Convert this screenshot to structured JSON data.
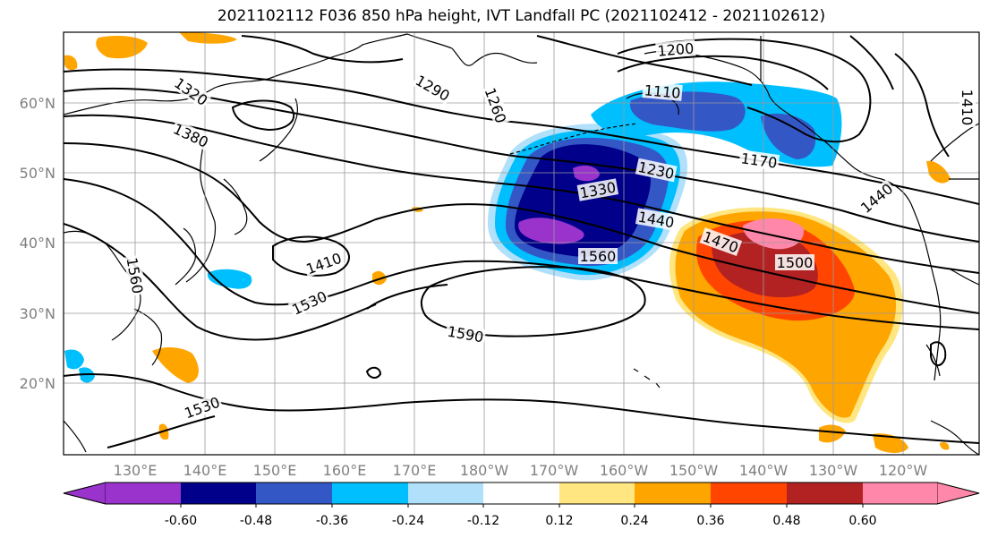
{
  "title": "2021102112 F036 850 hPa height, IVT Landfall PC (2021102412 - 2021102612)",
  "colors": {
    "coast": "#000000",
    "contour": "#000000",
    "grid": "#9a9a9a",
    "axis_label": "#808080"
  },
  "lat_labels": [
    "60°N",
    "50°N",
    "40°N",
    "30°N",
    "20°N"
  ],
  "lon_labels": [
    "130°E",
    "140°E",
    "150°E",
    "160°E",
    "170°E",
    "180°W",
    "170°W",
    "160°W",
    "150°W",
    "140°W",
    "130°W",
    "120°W"
  ],
  "contour_labels": [
    "1200",
    "1110",
    "1320",
    "1380",
    "1290",
    "1260",
    "1170",
    "1230",
    "1330",
    "1440",
    "1470",
    "1500",
    "1560",
    "1410",
    "1530",
    "1590",
    "1530",
    "1440",
    "1410",
    "1560"
  ],
  "colorbar": {
    "colors": [
      "#9933cc",
      "#00008b",
      "#3457c6",
      "#00bfff",
      "#b0e0fa",
      "#ffffff",
      "#ffe680",
      "#ffa500",
      "#ff4500",
      "#b22222",
      "#ff88aa"
    ],
    "ticks": [
      "-0.60",
      "-0.48",
      "-0.36",
      "-0.24",
      "-0.12",
      "0.12",
      "0.24",
      "0.36",
      "0.48",
      "0.60"
    ]
  }
}
